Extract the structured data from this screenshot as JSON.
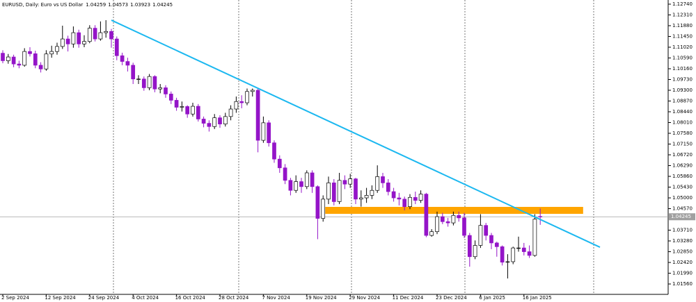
{
  "chart_data": {
    "type": "candlestick",
    "title": "EURUSD, Daily:  Euro vs US Dollar",
    "categories": [
      "2 Sep 2024",
      null,
      null,
      null,
      null,
      null,
      null,
      null,
      "12 Sep 2024",
      null,
      null,
      null,
      null,
      null,
      null,
      null,
      "24 Sep 2024",
      null,
      null,
      null,
      null,
      null,
      null,
      null,
      "4 Oct 2024",
      null,
      null,
      null,
      null,
      null,
      null,
      null,
      "16 Oct 2024",
      null,
      null,
      null,
      null,
      null,
      null,
      null,
      "28 Oct 2024",
      null,
      null,
      null,
      null,
      null,
      null,
      null,
      "7 Nov 2024",
      null,
      null,
      null,
      null,
      null,
      null,
      null,
      "19 Nov 2024",
      null,
      null,
      null,
      null,
      null,
      null,
      null,
      "29 Nov 2024",
      null,
      null,
      null,
      null,
      null,
      null,
      null,
      "11 Dec 2024",
      null,
      null,
      null,
      null,
      null,
      null,
      null,
      "23 Dec 2024",
      null,
      null,
      null,
      null,
      null,
      null,
      null,
      "6 Jan 2025",
      null,
      null,
      null,
      null,
      null,
      null,
      null,
      "16 Jan 2025",
      null,
      null,
      null
    ],
    "open": [
      1.1078,
      1.1048,
      1.1063,
      1.1035,
      1.103,
      1.1085,
      1.1076,
      1.103,
      1.1015,
      1.1075,
      1.1085,
      1.1105,
      1.1135,
      1.1115,
      1.116,
      1.1115,
      1.1125,
      1.1178,
      1.1135,
      1.116,
      1.1165,
      1.1135,
      1.1068,
      1.1045,
      1.103,
      1.0975,
      1.0975,
      1.094,
      1.0985,
      1.0935,
      1.094,
      1.0915,
      1.089,
      1.0862,
      1.0865,
      1.0835,
      1.0866,
      1.0815,
      1.0798,
      1.0785,
      1.082,
      1.0795,
      1.0825,
      1.0855,
      1.0885,
      1.088,
      1.0925,
      1.093,
      1.073,
      1.08,
      1.072,
      1.0655,
      1.062,
      1.057,
      1.053,
      1.0565,
      1.0545,
      1.06,
      1.0545,
      1.0418,
      1.0495,
      1.056,
      1.0485,
      1.057,
      1.0555,
      1.0576,
      1.0495,
      1.05,
      1.051,
      1.053,
      1.0585,
      1.056,
      1.0525,
      1.05,
      1.0495,
      1.0465,
      1.0502,
      1.049,
      1.0515,
      1.035,
      1.0365,
      1.0425,
      1.0405,
      1.04,
      1.043,
      1.042,
      1.035,
      1.0265,
      1.031,
      1.039,
      1.035,
      1.032,
      1.0305,
      1.0243,
      1.0245,
      1.03,
      1.03,
      1.0285,
      1.027,
      1.04259
    ],
    "high": [
      1.109,
      1.1075,
      1.1072,
      1.1048,
      1.1098,
      1.1102,
      1.1088,
      1.1042,
      1.109,
      1.1108,
      1.112,
      1.1188,
      1.1148,
      1.1185,
      1.1172,
      1.115,
      1.119,
      1.119,
      1.1205,
      1.121,
      1.1175,
      1.1145,
      1.108,
      1.106,
      1.104,
      1.099,
      1.0985,
      1.0995,
      1.099,
      1.0955,
      1.095,
      1.0925,
      1.09,
      1.0885,
      1.087,
      1.088,
      1.0875,
      1.0825,
      1.081,
      1.0835,
      1.083,
      1.084,
      1.087,
      1.0905,
      1.091,
      1.0937,
      1.0937,
      1.0937,
      1.0825,
      1.081,
      1.073,
      1.067,
      1.0635,
      1.058,
      1.059,
      1.058,
      1.061,
      1.061,
      1.055,
      1.051,
      1.0585,
      1.0575,
      1.06,
      1.059,
      1.0596,
      1.058,
      1.053,
      1.054,
      1.055,
      1.063,
      1.06,
      1.0575,
      1.054,
      1.052,
      1.0505,
      1.0515,
      1.0525,
      1.053,
      1.052,
      1.0375,
      1.0445,
      1.044,
      1.042,
      1.0445,
      1.0445,
      1.044,
      1.036,
      1.033,
      1.0435,
      1.04,
      1.036,
      1.0325,
      1.031,
      1.0275,
      1.0305,
      1.0345,
      1.032,
      1.031,
      1.0435,
      1.04573
    ],
    "low": [
      1.1038,
      1.1036,
      1.1022,
      1.1018,
      1.1024,
      1.1065,
      1.1018,
      1.1001,
      1.1008,
      1.106,
      1.1072,
      1.1095,
      1.1085,
      1.11,
      1.11,
      1.1102,
      1.1118,
      1.1125,
      1.1128,
      1.114,
      1.11,
      1.105,
      1.103,
      1.1005,
      1.0955,
      1.0955,
      1.0928,
      1.093,
      1.0922,
      1.0918,
      1.09,
      1.0875,
      1.0848,
      1.0845,
      1.082,
      1.0825,
      1.0805,
      1.0782,
      1.0765,
      1.0775,
      1.078,
      1.0785,
      1.081,
      1.084,
      1.0858,
      1.087,
      1.0905,
      1.0682,
      1.072,
      1.0705,
      1.064,
      1.06,
      1.0555,
      1.051,
      1.052,
      1.052,
      1.0535,
      1.052,
      1.0335,
      1.0405,
      1.0475,
      1.047,
      1.0475,
      1.0535,
      1.054,
      1.0475,
      1.0465,
      1.048,
      1.0495,
      1.052,
      1.054,
      1.051,
      1.0485,
      1.047,
      1.045,
      1.0455,
      1.0475,
      1.048,
      1.0343,
      1.0345,
      1.0355,
      1.0395,
      1.0385,
      1.039,
      1.0405,
      1.034,
      1.0225,
      1.0255,
      1.03,
      1.033,
      1.0295,
      1.0265,
      1.023,
      1.0178,
      1.0235,
      1.0285,
      1.027,
      1.026,
      1.0265,
      1.03923
    ],
    "close": [
      1.1048,
      1.1063,
      1.1035,
      1.103,
      1.1085,
      1.1076,
      1.103,
      1.1015,
      1.1075,
      1.1085,
      1.1105,
      1.1135,
      1.1115,
      1.116,
      1.1115,
      1.1125,
      1.1178,
      1.1135,
      1.116,
      1.1165,
      1.1135,
      1.1068,
      1.1045,
      1.103,
      1.0975,
      1.0975,
      1.094,
      1.0985,
      1.0935,
      1.094,
      1.0915,
      1.089,
      1.0862,
      1.0865,
      1.0835,
      1.0866,
      1.0815,
      1.0798,
      1.0785,
      1.082,
      1.0795,
      1.0825,
      1.0855,
      1.0885,
      1.088,
      1.0925,
      1.093,
      1.073,
      1.08,
      1.072,
      1.0655,
      1.062,
      1.057,
      1.053,
      1.0565,
      1.0545,
      1.06,
      1.0545,
      1.0418,
      1.0495,
      1.056,
      1.0485,
      1.057,
      1.0555,
      1.0576,
      1.0495,
      1.05,
      1.051,
      1.053,
      1.0585,
      1.056,
      1.0525,
      1.05,
      1.0495,
      1.0465,
      1.0502,
      1.049,
      1.0515,
      1.035,
      1.0365,
      1.0425,
      1.0405,
      1.04,
      1.043,
      1.042,
      1.035,
      1.0265,
      1.031,
      1.039,
      1.035,
      1.032,
      1.0305,
      1.0243,
      1.0245,
      1.03,
      1.03,
      1.0285,
      1.027,
      1.0415,
      1.04245
    ],
    "up_color": "#ffffff",
    "down_color": "#9414c8",
    "ylim": [
      1.01145,
      1.12906
    ],
    "yticks": [
      1.1274,
      1.1231,
      1.1188,
      1.1145,
      1.1102,
      1.1059,
      1.1016,
      1.0973,
      1.093,
      1.0887,
      1.0844,
      1.0801,
      1.0758,
      1.0715,
      1.0672,
      1.0629,
      1.0586,
      1.0543,
      1.05,
      1.0457,
      1.0371,
      1.0328,
      1.0285,
      1.0242,
      1.0199,
      1.0156
    ],
    "ytick_labels": [
      "1.12740",
      "1.12310",
      "1.11880",
      "1.11450",
      "1.11020",
      "1.10590",
      "1.10160",
      "1.09730",
      "1.09300",
      "1.08870",
      "1.08440",
      "1.08010",
      "1.07580",
      "1.07150",
      "1.06720",
      "1.06290",
      "1.05860",
      "1.05430",
      "1.05000",
      "1.04570",
      "1.03710",
      "1.03280",
      "1.02850",
      "1.02420",
      "1.01990",
      "1.01560"
    ],
    "last_price_label": "1.04245",
    "trendline": {
      "x": [
        20,
        110
      ],
      "y": [
        1.121,
        1.0303
      ],
      "color": "#1cb8f0"
    },
    "zone": {
      "x": [
        59.4,
        106.9
      ],
      "y": [
        1.04362,
        1.0464
      ],
      "color": "#ffa500"
    }
  }
}
